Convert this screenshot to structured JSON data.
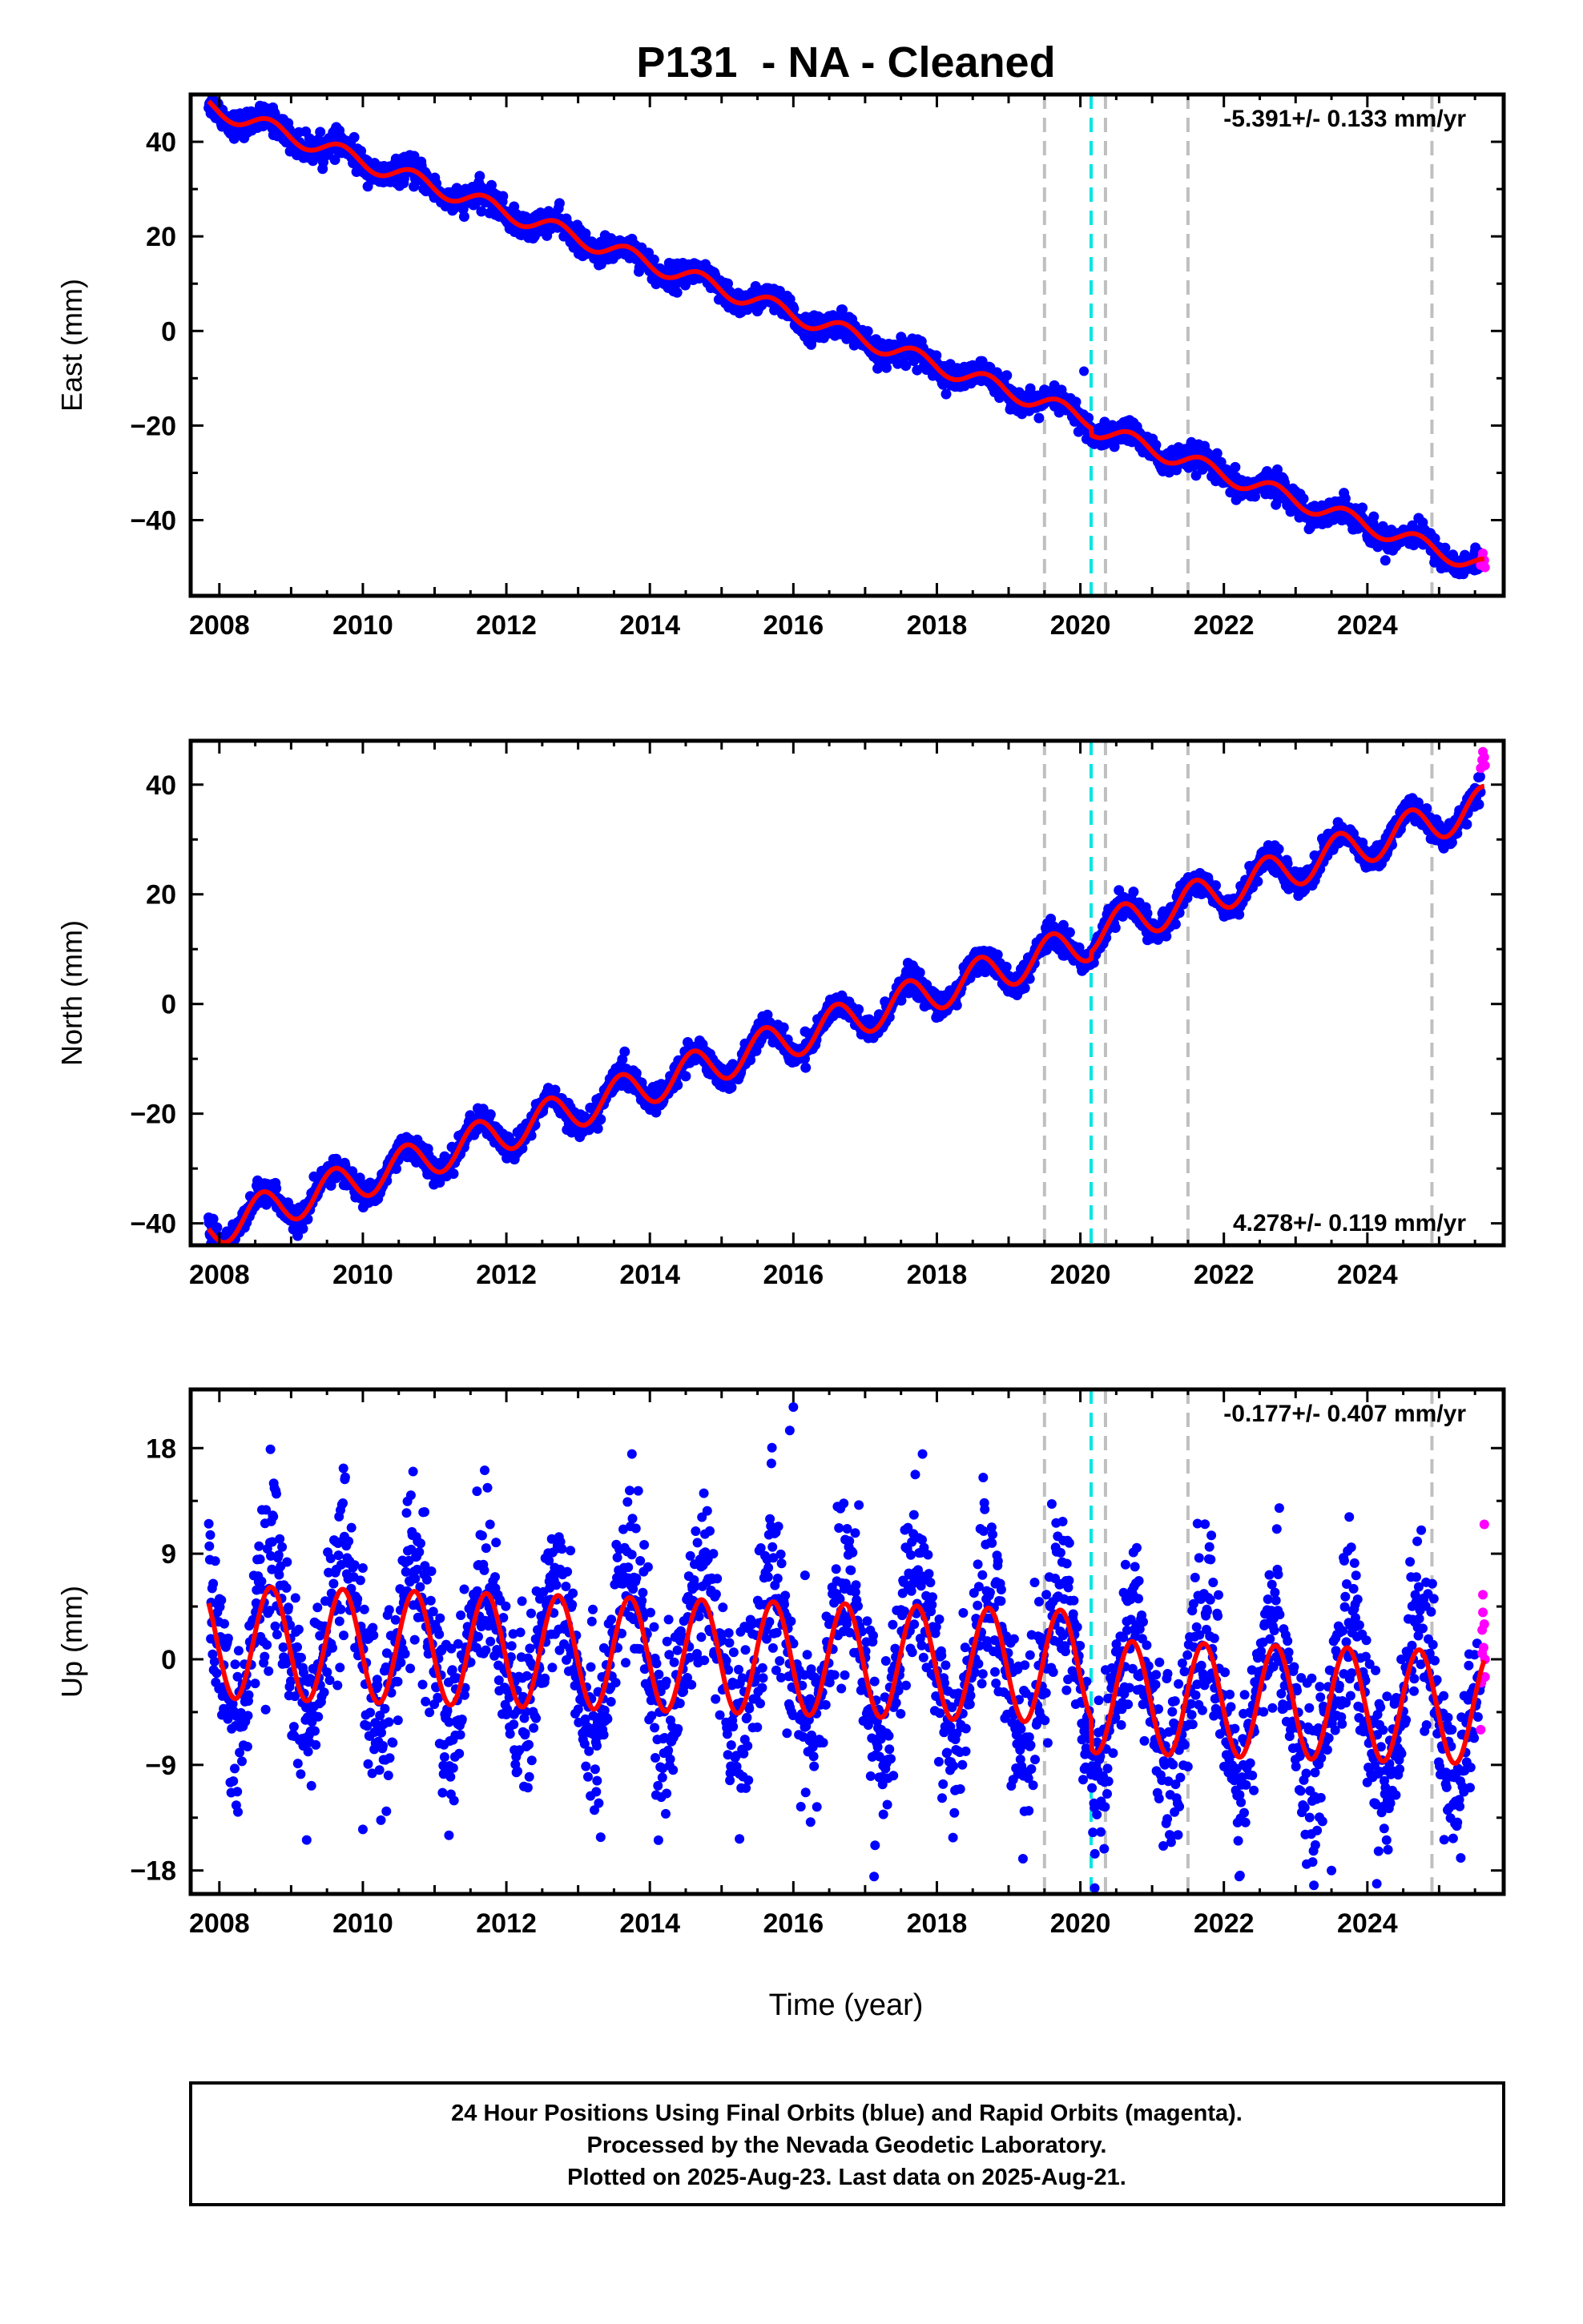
{
  "title": "P131  - NA - Cleaned",
  "xlabel": "Time (year)",
  "caption": [
    "24 Hour Positions Using Final Orbits (blue) and Rapid Orbits (magenta).",
    "Processed by the Nevada Geodetic Laboratory.",
    "Plotted on 2025-Aug-23. Last data on 2025-Aug-21."
  ],
  "colors": {
    "final": "#0000ff",
    "rapid": "#ff00ff",
    "model": "#ff0000",
    "event_dash": "#bfbfbf",
    "event_cyan": "#00e5e5"
  },
  "chart_data": [
    {
      "type": "scatter",
      "component": "east",
      "ylabel": "East (mm)",
      "rate": "-5.391+/- 0.133 mm/yr",
      "rate_position": "top-right",
      "xlim": [
        2007.6,
        2025.9
      ],
      "ylim": [
        -56,
        50
      ],
      "xticks": [
        2008,
        2010,
        2012,
        2014,
        2016,
        2018,
        2020,
        2022,
        2024
      ],
      "yticks": [
        -40,
        -20,
        0,
        20,
        40
      ],
      "model": {
        "start_year": 2007.85,
        "end_year": 2025.63,
        "start_value": 47.5,
        "rate_mm_per_yr": -5.391,
        "annual_amplitude": 1.8,
        "annual_phase_year": 2008.7,
        "step_at": 2020.15,
        "step_size": -1.5
      },
      "scatter_sigma": 1.3,
      "outliers": [
        [
          2020.05,
          -8.5
        ]
      ],
      "rapid_points": [
        [
          2025.58,
          -49.5
        ],
        [
          2025.6,
          -48.0
        ],
        [
          2025.61,
          -47.0
        ],
        [
          2025.63,
          -48.5
        ],
        [
          2025.64,
          -50.0
        ]
      ],
      "events_gray": [
        2019.5,
        2020.35,
        2021.5,
        2024.9
      ],
      "events_cyan": [
        2020.15
      ]
    },
    {
      "type": "scatter",
      "component": "north",
      "ylabel": "North (mm)",
      "rate": "4.278+/- 0.119 mm/yr",
      "rate_position": "bottom-right",
      "xlim": [
        2007.6,
        2025.9
      ],
      "ylim": [
        -44,
        48
      ],
      "xticks": [
        2008,
        2010,
        2012,
        2014,
        2016,
        2018,
        2020,
        2022,
        2024
      ],
      "yticks": [
        -40,
        -20,
        0,
        20,
        40
      ],
      "model": {
        "start_year": 2007.85,
        "end_year": 2025.63,
        "start_value": -41.0,
        "rate_mm_per_yr": 4.278,
        "annual_amplitude": 3.5,
        "annual_phase_year": 2008.6,
        "step_at": 2020.15,
        "step_size": 1.2
      },
      "scatter_sigma": 1.1,
      "outliers": [],
      "rapid_points": [
        [
          2025.58,
          43.0
        ],
        [
          2025.6,
          44.5
        ],
        [
          2025.61,
          46.0
        ],
        [
          2025.63,
          45.0
        ],
        [
          2025.64,
          43.5
        ]
      ],
      "events_gray": [
        2019.5,
        2020.35,
        2021.5,
        2024.9
      ],
      "events_cyan": [
        2020.15
      ]
    },
    {
      "type": "scatter",
      "component": "up",
      "ylabel": "Up (mm)",
      "rate": "-0.177+/- 0.407 mm/yr",
      "rate_position": "top-right",
      "xlim": [
        2007.6,
        2025.9
      ],
      "ylim": [
        -20,
        23
      ],
      "xticks": [
        2008,
        2010,
        2012,
        2014,
        2016,
        2018,
        2020,
        2022,
        2024
      ],
      "yticks": [
        -18,
        -9,
        0,
        9,
        18
      ],
      "model": {
        "start_year": 2007.85,
        "end_year": 2025.63,
        "start_value": 1.5,
        "rate_mm_per_yr": -0.177,
        "annual_amplitude": 4.8,
        "annual_phase_year": 2008.72,
        "step_at": 2020.15,
        "step_size": -2.5
      },
      "scatter_sigma": 3.0,
      "outliers": [
        [
          2016.0,
          21.5
        ],
        [
          2015.95,
          19.5
        ],
        [
          2013.75,
          17.5
        ],
        [
          2017.8,
          17.5
        ],
        [
          2010.7,
          16.0
        ],
        [
          2019.2,
          -17.0
        ],
        [
          2020.2,
          -19.5
        ],
        [
          2023.5,
          -18.0
        ],
        [
          2010.0,
          -14.5
        ],
        [
          2011.2,
          -15.0
        ]
      ],
      "rapid_points": [
        [
          2025.58,
          -6.0
        ],
        [
          2025.59,
          -2.0
        ],
        [
          2025.6,
          0.5
        ],
        [
          2025.6,
          2.5
        ],
        [
          2025.61,
          4.0
        ],
        [
          2025.61,
          5.5
        ],
        [
          2025.62,
          1.0
        ],
        [
          2025.63,
          11.5
        ],
        [
          2025.63,
          3.0
        ],
        [
          2025.64,
          -1.5
        ],
        [
          2025.64,
          0.0
        ]
      ],
      "events_gray": [
        2019.5,
        2020.35,
        2021.5,
        2024.9
      ],
      "events_cyan": [
        2020.15
      ]
    }
  ]
}
